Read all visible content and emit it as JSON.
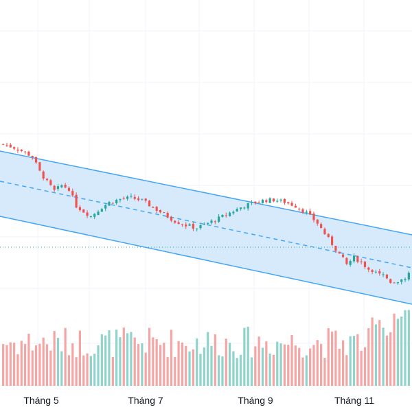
{
  "colors": {
    "up": "#26a69a",
    "down": "#ef5350",
    "volume_up": "#8fd3cb",
    "volume_down": "#f5a5a3",
    "channel_line": "#42a5f5",
    "channel_fill": "#cfe6fb",
    "grid": "#f0f3fa",
    "reference_line": "#26a69a"
  },
  "chart_data": {
    "type": "candlestick",
    "x_axis": {
      "tick_labels": [
        "Tháng 5",
        "Tháng 7",
        "Tháng 9",
        "Tháng 11"
      ]
    },
    "grid": true,
    "price_scale": {
      "min": 0,
      "max": 600
    },
    "volume_scale": {
      "min": 0,
      "max": 120
    },
    "regression_channel": {
      "upper": {
        "start": 380,
        "end": 258
      },
      "mid": {
        "start": 336,
        "end": 210
      },
      "lower": {
        "start": 285,
        "end": 157
      }
    },
    "reference_level": 240,
    "candles_close_path": [
      [
        0,
        390
      ],
      [
        3,
        385
      ],
      [
        6,
        378
      ],
      [
        8,
        372
      ],
      [
        10,
        350
      ],
      [
        12,
        335
      ],
      [
        14,
        322
      ],
      [
        16,
        330
      ],
      [
        18,
        325
      ],
      [
        20,
        300
      ],
      [
        22,
        292
      ],
      [
        24,
        285
      ],
      [
        27,
        298
      ],
      [
        29,
        305
      ],
      [
        32,
        310
      ],
      [
        35,
        312
      ],
      [
        38,
        308
      ],
      [
        41,
        298
      ],
      [
        44,
        288
      ],
      [
        47,
        278
      ],
      [
        50,
        272
      ],
      [
        53,
        268
      ],
      [
        56,
        275
      ],
      [
        59,
        282
      ],
      [
        62,
        290
      ],
      [
        65,
        298
      ],
      [
        68,
        304
      ],
      [
        71,
        308
      ],
      [
        74,
        309
      ],
      [
        77,
        306
      ],
      [
        80,
        300
      ],
      [
        83,
        290
      ],
      [
        86,
        275
      ],
      [
        89,
        252
      ],
      [
        92,
        230
      ],
      [
        94,
        215
      ],
      [
        96,
        225
      ],
      [
        98,
        218
      ],
      [
        100,
        208
      ],
      [
        102,
        206
      ],
      [
        104,
        200
      ],
      [
        106,
        190
      ],
      [
        108,
        190
      ],
      [
        110,
        196
      ],
      [
        112,
        205
      ]
    ]
  }
}
